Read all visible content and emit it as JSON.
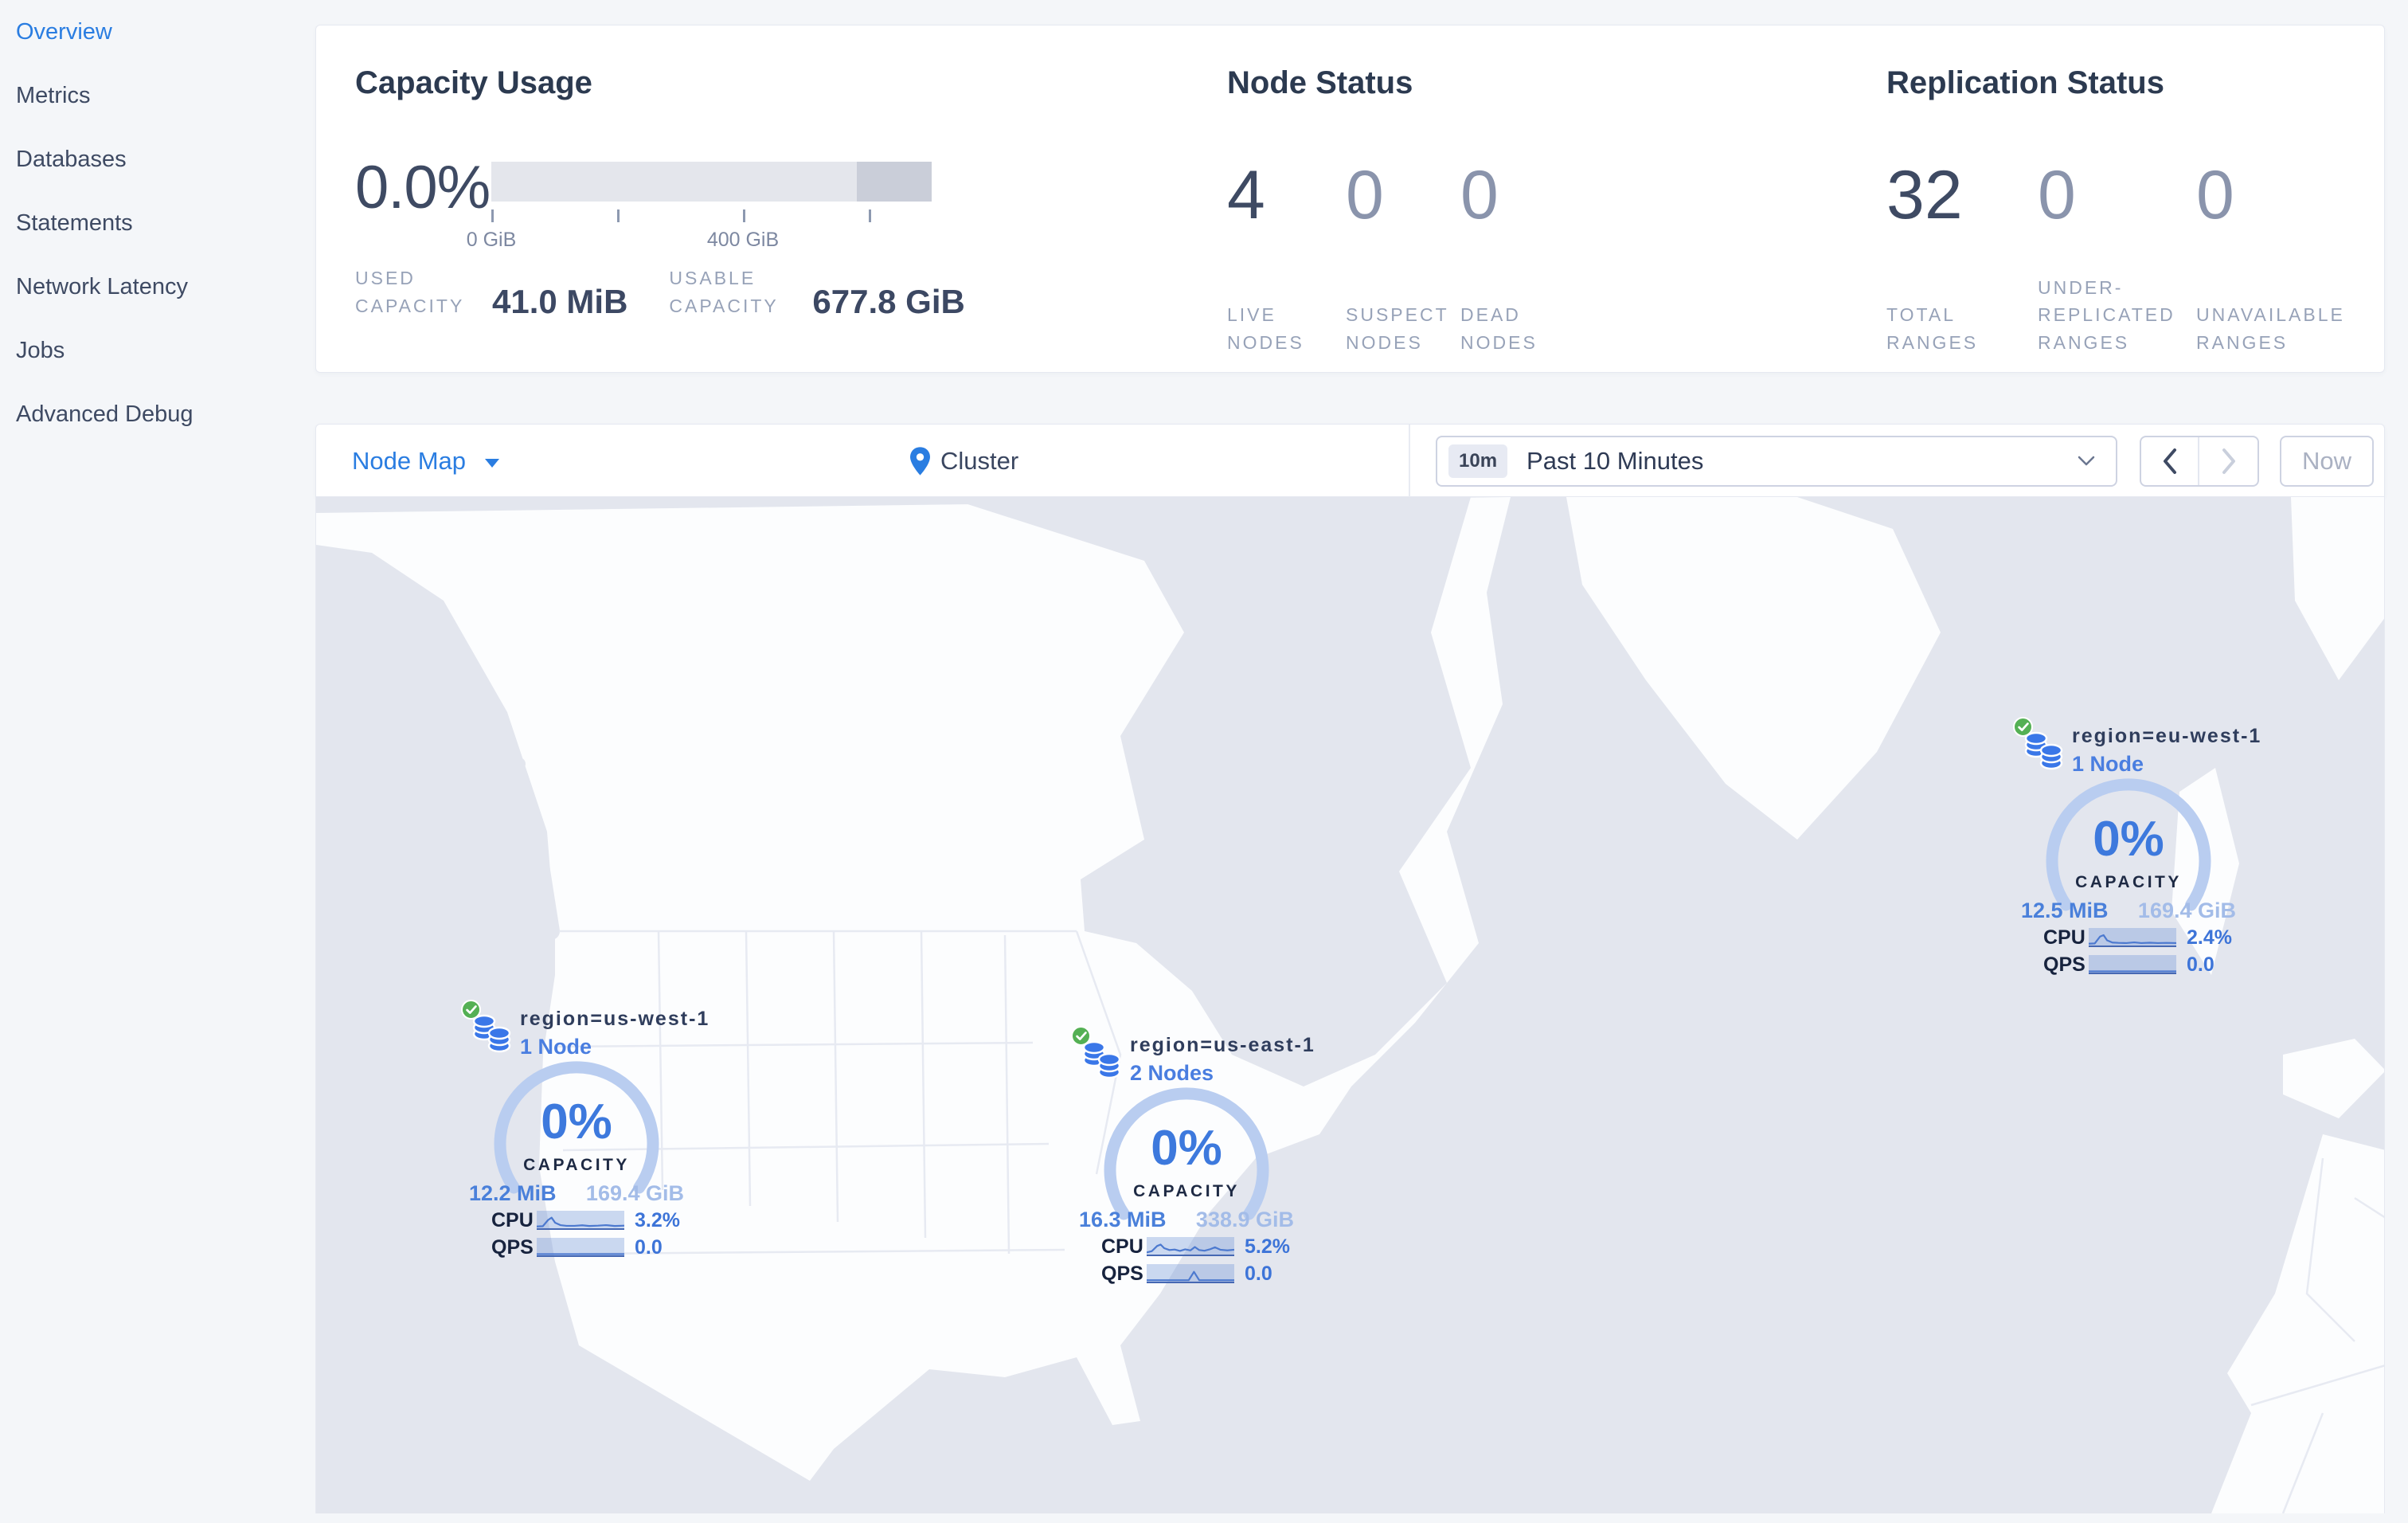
{
  "sidebar": {
    "items": [
      {
        "label": "Overview",
        "active": true
      },
      {
        "label": "Metrics",
        "active": false
      },
      {
        "label": "Databases",
        "active": false
      },
      {
        "label": "Statements",
        "active": false
      },
      {
        "label": "Network Latency",
        "active": false
      },
      {
        "label": "Jobs",
        "active": false
      },
      {
        "label": "Advanced Debug",
        "active": false
      }
    ]
  },
  "summary": {
    "capacity_usage": {
      "title": "Capacity Usage",
      "percent": "0.0%",
      "axis_ticks": [
        "0 GiB",
        "400 GiB"
      ],
      "used_label": "USED CAPACITY",
      "used_value": "41.0 MiB",
      "usable_label": "USABLE CAPACITY",
      "usable_value": "677.8 GiB"
    },
    "node_status": {
      "title": "Node Status",
      "live": {
        "value": "4",
        "label": "LIVE NODES"
      },
      "suspect": {
        "value": "0",
        "label": "SUSPECT NODES"
      },
      "dead": {
        "value": "0",
        "label": "DEAD NODES"
      }
    },
    "replication_status": {
      "title": "Replication Status",
      "total": {
        "value": "32",
        "label": "TOTAL RANGES"
      },
      "under_replicated": {
        "value": "0",
        "label": "UNDER-REPLICATED RANGES"
      },
      "unavailable": {
        "value": "0",
        "label": "UNAVAILABLE RANGES"
      }
    }
  },
  "toolbar": {
    "view_label": "Node Map",
    "breadcrumb": "Cluster",
    "time_badge": "10m",
    "time_range": "Past 10 Minutes",
    "now_label": "Now"
  },
  "map": {
    "regions": [
      {
        "name": "region=us-west-1",
        "nodes": "1 Node",
        "percent": "0%",
        "capacity_label": "CAPACITY",
        "used": "12.2 MiB",
        "total": "169.4 GiB",
        "cpu_label": "CPU",
        "cpu_value": "3.2%",
        "qps_label": "QPS",
        "qps_value": "0.0",
        "cpu_spark": [
          [
            0,
            8
          ],
          [
            7,
            10
          ],
          [
            13,
            46
          ],
          [
            17,
            60
          ],
          [
            21,
            30
          ],
          [
            27,
            16
          ],
          [
            34,
            12
          ],
          [
            43,
            12
          ],
          [
            52,
            15
          ],
          [
            60,
            11
          ],
          [
            70,
            13
          ],
          [
            79,
            16
          ],
          [
            89,
            11
          ],
          [
            100,
            13
          ]
        ],
        "qps_spark": [
          [
            0,
            5
          ],
          [
            100,
            5
          ]
        ]
      },
      {
        "name": "region=us-east-1",
        "nodes": "2 Nodes",
        "percent": "0%",
        "capacity_label": "CAPACITY",
        "used": "16.3 MiB",
        "total": "338.9 GiB",
        "cpu_label": "CPU",
        "cpu_value": "5.2%",
        "qps_label": "QPS",
        "qps_value": "0.0",
        "cpu_spark": [
          [
            0,
            10
          ],
          [
            6,
            18
          ],
          [
            12,
            48
          ],
          [
            16,
            56
          ],
          [
            20,
            35
          ],
          [
            26,
            24
          ],
          [
            32,
            27
          ],
          [
            38,
            19
          ],
          [
            44,
            28
          ],
          [
            50,
            22
          ],
          [
            55,
            42
          ],
          [
            60,
            24
          ],
          [
            66,
            20
          ],
          [
            72,
            28
          ],
          [
            78,
            40
          ],
          [
            84,
            26
          ],
          [
            92,
            22
          ],
          [
            100,
            26
          ]
        ],
        "qps_spark": [
          [
            0,
            6
          ],
          [
            48,
            6
          ],
          [
            54,
            55
          ],
          [
            60,
            6
          ],
          [
            100,
            6
          ]
        ]
      },
      {
        "name": "region=eu-west-1",
        "nodes": "1 Node",
        "percent": "0%",
        "capacity_label": "CAPACITY",
        "used": "12.5 MiB",
        "total": "169.4 GiB",
        "cpu_label": "CPU",
        "cpu_value": "2.4%",
        "qps_label": "QPS",
        "qps_value": "0.0",
        "cpu_spark": [
          [
            0,
            8
          ],
          [
            7,
            10
          ],
          [
            13,
            50
          ],
          [
            17,
            58
          ],
          [
            21,
            28
          ],
          [
            27,
            15
          ],
          [
            34,
            13
          ],
          [
            43,
            12
          ],
          [
            52,
            16
          ],
          [
            60,
            12
          ],
          [
            70,
            14
          ],
          [
            79,
            12
          ],
          [
            89,
            13
          ],
          [
            100,
            12
          ]
        ],
        "qps_spark": [
          [
            0,
            5
          ],
          [
            100,
            5
          ]
        ]
      }
    ]
  },
  "colors": {
    "accent_blue": "#2a7de1",
    "link_blue": "#4a7ee0",
    "gauge_blue": "#3d79dd",
    "arc_blue": "#b9cdf0",
    "healthy_green": "#54b054",
    "dark_text": "#3e4a63",
    "muted_number": "#8a94ac",
    "label_gray": "#97a2b8",
    "water": "#e3e6ee",
    "land": "#fcfdfe"
  }
}
